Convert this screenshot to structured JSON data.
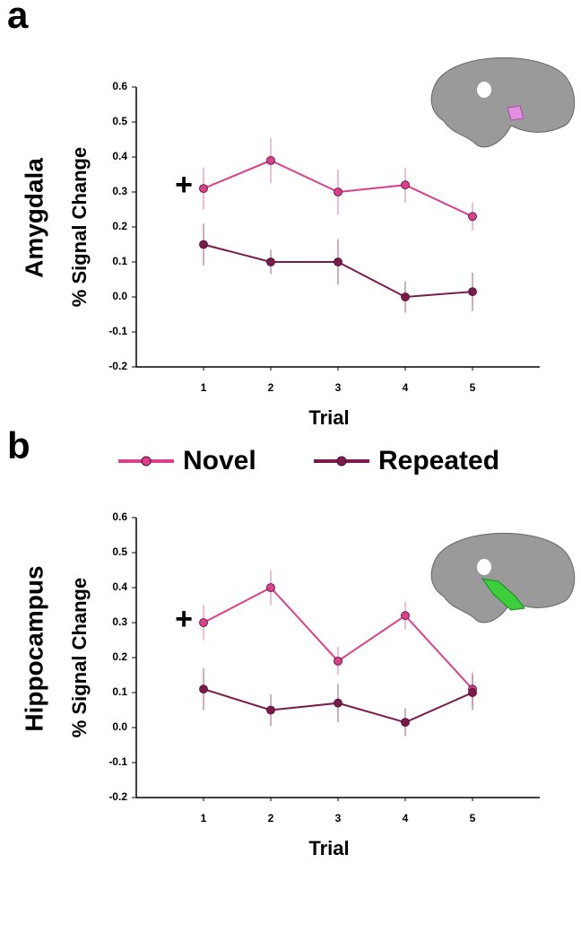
{
  "chart_data": [
    {
      "type": "line",
      "panel": "a",
      "region": "Amygdala",
      "ylabel": "% Signal Change",
      "xlabel": "Trial",
      "annotation": "+",
      "x": [
        1,
        2,
        3,
        4,
        5
      ],
      "xlim": [
        0,
        6
      ],
      "xticks": [
        1,
        2,
        3,
        4,
        5
      ],
      "ylim": [
        -0.2,
        0.6
      ],
      "yticks": [
        -0.2,
        -0.1,
        {
          "value": 0,
          "label": "0.0"
        },
        0.1,
        0.2,
        0.3,
        0.4,
        0.5,
        0.6
      ],
      "series": [
        {
          "name": "Novel",
          "color": "#dc3f8c",
          "values": [
            0.31,
            0.39,
            0.3,
            0.32,
            0.23
          ],
          "errors": [
            0.06,
            0.065,
            0.065,
            0.05,
            0.04
          ]
        },
        {
          "name": "Repeated",
          "color": "#7c1a4c",
          "values": [
            0.15,
            0.1,
            0.1,
            0.0,
            0.015
          ],
          "errors": [
            0.06,
            0.035,
            0.065,
            0.045,
            0.055
          ]
        }
      ]
    },
    {
      "type": "line",
      "panel": "b",
      "region": "Hippocampus",
      "ylabel": "% Signal Change",
      "xlabel": "Trial",
      "annotation": "+",
      "x": [
        1,
        2,
        3,
        4,
        5
      ],
      "xlim": [
        0,
        6
      ],
      "xticks": [
        1,
        2,
        3,
        4,
        5
      ],
      "ylim": [
        -0.2,
        0.6
      ],
      "yticks": [
        -0.2,
        -0.1,
        {
          "value": 0,
          "label": "0.0"
        },
        0.1,
        0.2,
        0.3,
        0.4,
        0.5,
        0.6
      ],
      "series": [
        {
          "color": "#dc3f8c",
          "values": [
            0.3,
            0.4,
            0.19,
            0.32,
            0.11
          ],
          "errors": [
            0.05,
            0.05,
            0.04,
            0.04,
            0.05
          ]
        },
        {
          "color": "#7c1a4c",
          "values": [
            0.11,
            0.05,
            0.07,
            0.015,
            0.1
          ],
          "errors": [
            0.06,
            0.045,
            0.055,
            0.04,
            0.05
          ]
        }
      ]
    }
  ]
}
